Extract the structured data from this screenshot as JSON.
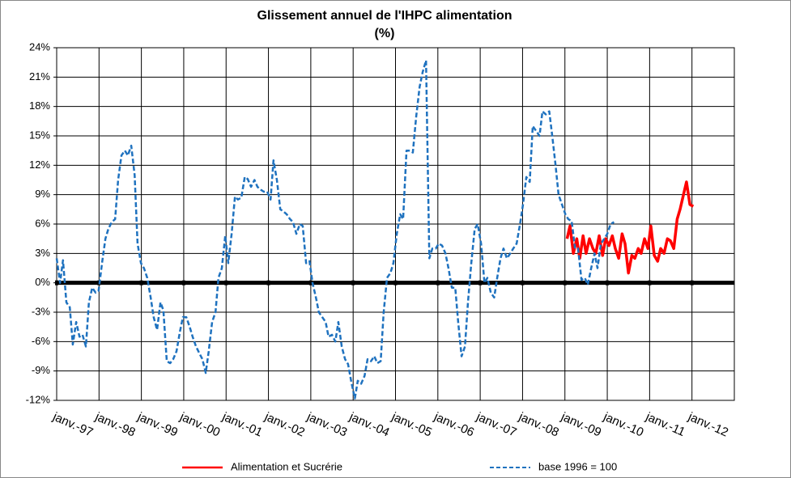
{
  "chart_data": {
    "type": "line",
    "title": "Glissement annuel de l'IHPC alimentation",
    "subtitle": "(%)",
    "xlim": [
      1997,
      2013
    ],
    "xticks": [
      {
        "value": 1997,
        "label": "janv.-97"
      },
      {
        "value": 1998,
        "label": "janv.-98"
      },
      {
        "value": 1999,
        "label": "janv.-99"
      },
      {
        "value": 2000,
        "label": "janv.-00"
      },
      {
        "value": 2001,
        "label": "janv.-01"
      },
      {
        "value": 2002,
        "label": "janv.-02"
      },
      {
        "value": 2003,
        "label": "janv.-03"
      },
      {
        "value": 2004,
        "label": "janv.-04"
      },
      {
        "value": 2005,
        "label": "janv.-05"
      },
      {
        "value": 2006,
        "label": "janv.-06"
      },
      {
        "value": 2007,
        "label": "janv.-07"
      },
      {
        "value": 2008,
        "label": "janv.-08"
      },
      {
        "value": 2009,
        "label": "janv.-09"
      },
      {
        "value": 2010,
        "label": "janv.-10"
      },
      {
        "value": 2011,
        "label": "janv.-11"
      },
      {
        "value": 2012,
        "label": "janv.-12"
      }
    ],
    "ylim": [
      -12,
      24
    ],
    "yticks": [
      {
        "value": -12,
        "label": "-12%"
      },
      {
        "value": -9,
        "label": "-9%"
      },
      {
        "value": -6,
        "label": "-6%"
      },
      {
        "value": -3,
        "label": "-3%"
      },
      {
        "value": 0,
        "label": "0%"
      },
      {
        "value": 3,
        "label": "3%"
      },
      {
        "value": 6,
        "label": "6%"
      },
      {
        "value": 9,
        "label": "9%"
      },
      {
        "value": 12,
        "label": "12%"
      },
      {
        "value": 15,
        "label": "15%"
      },
      {
        "value": 18,
        "label": "18%"
      },
      {
        "value": 21,
        "label": "21%"
      },
      {
        "value": 24,
        "label": "24%"
      }
    ],
    "grid": true,
    "legend": "bottom",
    "series": [
      {
        "name": "Alimentation et Sucrérie",
        "color": "#ff0000",
        "dashed": false,
        "x": [
          2009.05,
          2009.12,
          2009.2,
          2009.28,
          2009.35,
          2009.43,
          2009.5,
          2009.58,
          2009.66,
          2009.73,
          2009.81,
          2009.89,
          2009.96,
          2010.04,
          2010.12,
          2010.19,
          2010.27,
          2010.35,
          2010.42,
          2010.5,
          2010.58,
          2010.65,
          2010.73,
          2010.8,
          2010.88,
          2010.96,
          2011.03,
          2011.11,
          2011.19,
          2011.26,
          2011.34,
          2011.42,
          2011.49,
          2011.57,
          2011.65,
          2011.72,
          2011.8,
          2011.87,
          2011.95,
          2012.03
        ],
        "values": [
          4.5,
          5.8,
          3,
          4.5,
          2.5,
          4.8,
          3,
          4.5,
          3.5,
          3,
          4.8,
          2.8,
          4.5,
          3.8,
          4.8,
          3.5,
          2.5,
          5,
          4,
          1,
          2.8,
          2.5,
          3.5,
          3,
          4.5,
          3.5,
          5.8,
          2.8,
          2.2,
          3.5,
          3,
          4.5,
          4.3,
          3.5,
          6.5,
          7.5,
          9,
          10.3,
          8,
          7.8
        ]
      },
      {
        "name": "base 1996 = 100",
        "color": "#1f72bf",
        "dashed": true,
        "x": [
          1997.0,
          1997.08,
          1997.15,
          1997.23,
          1997.31,
          1997.38,
          1997.46,
          1997.54,
          1997.61,
          1997.69,
          1997.76,
          1997.84,
          1997.92,
          1997.99,
          1998.07,
          1998.15,
          1998.22,
          1998.3,
          1998.38,
          1998.45,
          1998.53,
          1998.61,
          1998.68,
          1998.76,
          1998.84,
          1998.91,
          1998.99,
          1999.06,
          1999.14,
          1999.22,
          1999.29,
          1999.37,
          1999.45,
          1999.52,
          1999.6,
          1999.68,
          1999.75,
          1999.83,
          1999.91,
          1999.98,
          2000.06,
          2000.14,
          2000.21,
          2000.29,
          2000.37,
          2000.44,
          2000.52,
          2000.59,
          2000.67,
          2000.75,
          2000.82,
          2000.9,
          2000.98,
          2001.05,
          2001.13,
          2001.21,
          2001.28,
          2001.36,
          2001.44,
          2001.51,
          2001.59,
          2001.67,
          2001.74,
          2001.82,
          2001.89,
          2001.97,
          2002.05,
          2002.12,
          2002.2,
          2002.28,
          2002.35,
          2002.43,
          2002.51,
          2002.58,
          2002.66,
          2002.74,
          2002.81,
          2002.89,
          2002.97,
          2003.04,
          2003.12,
          2003.19,
          2003.27,
          2003.35,
          2003.42,
          2003.5,
          2003.58,
          2003.65,
          2003.73,
          2003.81,
          2003.88,
          2003.96,
          2004.04,
          2004.11,
          2004.19,
          2004.27,
          2004.34,
          2004.42,
          2004.5,
          2004.57,
          2004.65,
          2004.72,
          2004.8,
          2004.88,
          2004.95,
          2005.03,
          2005.11,
          2005.18,
          2005.26,
          2005.34,
          2005.41,
          2005.49,
          2005.57,
          2005.64,
          2005.72,
          2005.8,
          2005.87,
          2005.95,
          2006.02,
          2006.1,
          2006.18,
          2006.25,
          2006.33,
          2006.41,
          2006.48,
          2006.56,
          2006.64,
          2006.71,
          2006.79,
          2006.87,
          2006.94,
          2007.02,
          2007.1,
          2007.17,
          2007.25,
          2007.33,
          2007.4,
          2007.48,
          2007.55,
          2007.63,
          2007.71,
          2007.78,
          2007.86,
          2007.94,
          2008.01,
          2008.09,
          2008.17,
          2008.24,
          2008.32,
          2008.4,
          2008.47,
          2008.55,
          2008.63,
          2008.7,
          2008.78,
          2008.85,
          2008.93,
          2009.01,
          2009.08,
          2009.16,
          2009.24,
          2009.31,
          2009.39,
          2009.47,
          2009.54,
          2009.62,
          2009.7,
          2009.77,
          2009.85,
          2009.93,
          2010.0,
          2010.08,
          2010.16
        ],
        "values": [
          2.5,
          0,
          2.3,
          -2,
          -2.5,
          -6.3,
          -4,
          -5.5,
          -5.3,
          -6.5,
          -2,
          -0.5,
          -1,
          -0.8,
          2,
          4.5,
          5.5,
          6.2,
          6.5,
          10.5,
          13,
          13.5,
          13,
          14,
          11,
          4,
          2,
          1.5,
          0.5,
          -1.5,
          -3.5,
          -4.8,
          -2,
          -2.8,
          -8,
          -8.2,
          -7.8,
          -7,
          -5,
          -3.5,
          -3.5,
          -4.5,
          -5.5,
          -6.5,
          -7.2,
          -7.8,
          -9.2,
          -7,
          -4,
          -3,
          0.5,
          1.5,
          4.8,
          2,
          5,
          8.8,
          8.5,
          8.7,
          10.8,
          10.6,
          9.8,
          10.5,
          9.8,
          9.5,
          9.3,
          9.3,
          8.5,
          12.5,
          10.5,
          7.5,
          7.3,
          7,
          6.5,
          6.2,
          5,
          6,
          5.8,
          2,
          2.2,
          0,
          -1.5,
          -3,
          -3.5,
          -4,
          -5.5,
          -5.3,
          -6,
          -4,
          -6.5,
          -7.8,
          -8.3,
          -10.2,
          -11.8,
          -10,
          -10.3,
          -9.5,
          -7.8,
          -8,
          -7.5,
          -8.2,
          -8,
          -3,
          0.5,
          1,
          2,
          5,
          7,
          6.5,
          13.5,
          13.5,
          13.3,
          17,
          20,
          21.5,
          22.7,
          2.5,
          3.5,
          3.5,
          4,
          3.8,
          3,
          1.5,
          -0.5,
          -0.5,
          -4,
          -7.5,
          -6.5,
          -2,
          2,
          5.5,
          6,
          4,
          0,
          0.5,
          -1,
          -1.5,
          0.5,
          2.5,
          3.5,
          2.5,
          3,
          3.5,
          4,
          6,
          8,
          10.8,
          10.3,
          16,
          15.5,
          15,
          17.5,
          17.2,
          17.5,
          15,
          12,
          9,
          8,
          7,
          6.5,
          6.3,
          3.5,
          3.5,
          0.3,
          0.5,
          -0.2,
          1.5,
          3,
          1.5,
          4,
          4.5,
          5,
          6,
          6.2
        ]
      }
    ]
  }
}
